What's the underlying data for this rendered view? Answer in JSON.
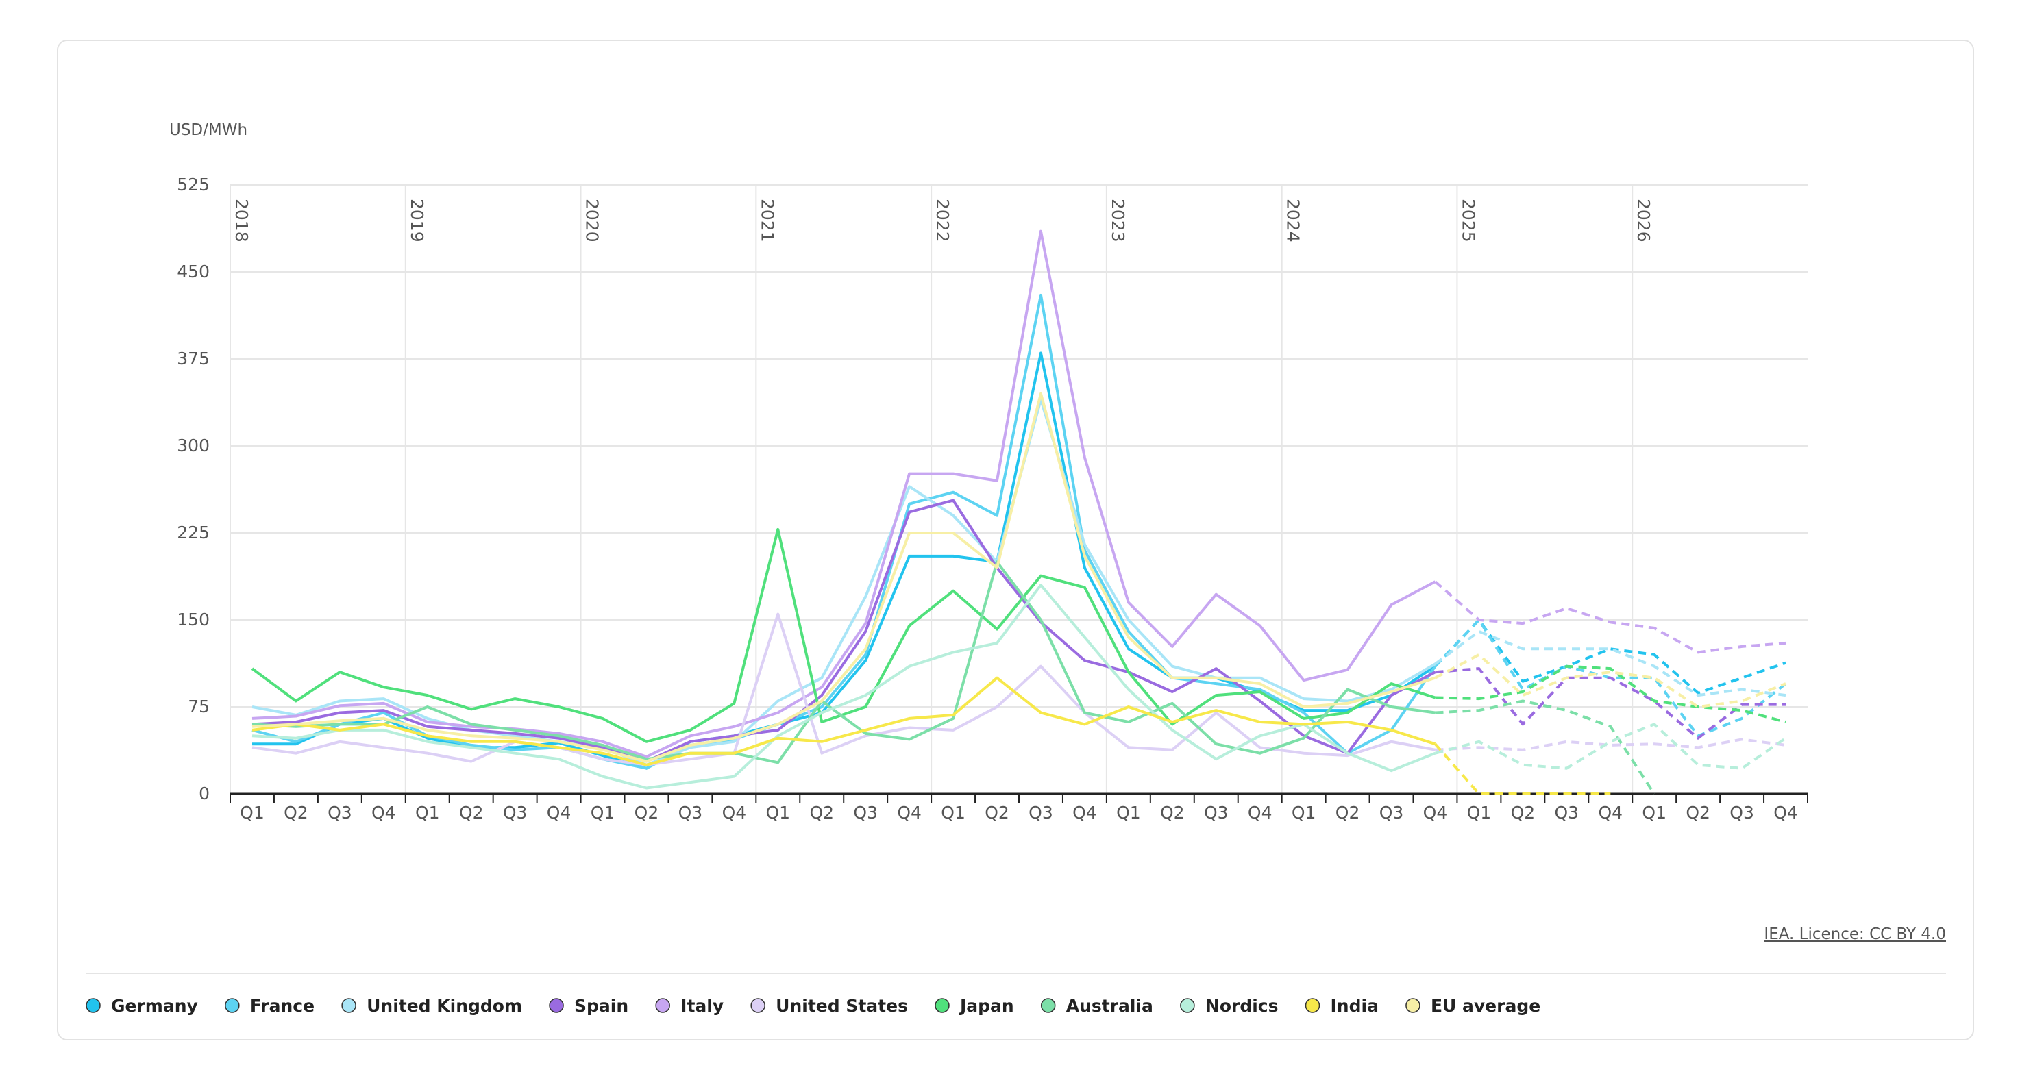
{
  "chart_data": {
    "type": "line",
    "y_unit": "USD/MWh",
    "source": "IEA. Licence: CC BY 4.0",
    "categories": [
      "Q1",
      "Q2",
      "Q3",
      "Q4",
      "Q1",
      "Q2",
      "Q3",
      "Q4",
      "Q1",
      "Q2",
      "Q3",
      "Q4",
      "Q1",
      "Q2",
      "Q3",
      "Q4",
      "Q1",
      "Q2",
      "Q3",
      "Q4",
      "Q1",
      "Q2",
      "Q3",
      "Q4",
      "Q1",
      "Q2",
      "Q3",
      "Q4",
      "Q1",
      "Q2",
      "Q3",
      "Q4",
      "Q1",
      "Q2",
      "Q3",
      "Q4"
    ],
    "years": [
      "2018",
      "2019",
      "2020",
      "2021",
      "2022",
      "2023",
      "2024",
      "2025",
      "2026"
    ],
    "dash_from": 28,
    "ylim": [
      0,
      525
    ],
    "yticks": [
      0,
      75,
      150,
      225,
      300,
      375,
      450,
      525
    ],
    "grid": true,
    "series": [
      {
        "name": "Germany",
        "color": "#22c3ee",
        "values": [
          43,
          43,
          60,
          65,
          48,
          40,
          40,
          44,
          33,
          22,
          45,
          50,
          60,
          70,
          115,
          205,
          205,
          200,
          380,
          195,
          125,
          100,
          100,
          88,
          72,
          72,
          85,
          110,
          150,
          97,
          110,
          125,
          120,
          87,
          100,
          113
        ]
      },
      {
        "name": "France",
        "color": "#5dd3f2",
        "values": [
          55,
          45,
          60,
          70,
          50,
          42,
          38,
          40,
          30,
          22,
          42,
          47,
          60,
          75,
          120,
          250,
          260,
          240,
          430,
          210,
          140,
          100,
          95,
          90,
          70,
          35,
          55,
          110,
          150,
          90,
          110,
          100,
          100,
          50,
          65,
          95
        ]
      },
      {
        "name": "United Kingdom",
        "color": "#a9e5f7",
        "values": [
          75,
          68,
          80,
          82,
          65,
          55,
          50,
          45,
          40,
          25,
          40,
          45,
          80,
          100,
          170,
          265,
          240,
          200,
          340,
          215,
          150,
          110,
          100,
          100,
          82,
          80,
          90,
          112,
          140,
          125,
          125,
          125,
          110,
          85,
          90,
          85
        ]
      },
      {
        "name": "Spain",
        "color": "#9a6be0",
        "values": [
          60,
          62,
          70,
          72,
          58,
          55,
          52,
          48,
          40,
          28,
          45,
          50,
          55,
          85,
          140,
          243,
          253,
          195,
          148,
          115,
          105,
          88,
          108,
          80,
          50,
          35,
          85,
          105,
          108,
          60,
          100,
          100,
          80,
          48,
          77,
          77
        ]
      },
      {
        "name": "Italy",
        "color": "#c7a6f1",
        "values": [
          65,
          67,
          76,
          78,
          62,
          58,
          56,
          52,
          45,
          32,
          50,
          58,
          70,
          92,
          147,
          276,
          276,
          270,
          485,
          290,
          165,
          127,
          172,
          145,
          98,
          107,
          163,
          183,
          150,
          147,
          160,
          148,
          143,
          122,
          127,
          130
        ]
      },
      {
        "name": "United States",
        "color": "#dcd0f5",
        "values": [
          40,
          35,
          45,
          40,
          35,
          28,
          45,
          40,
          30,
          25,
          30,
          35,
          155,
          35,
          50,
          57,
          55,
          75,
          110,
          70,
          40,
          38,
          70,
          40,
          35,
          33,
          45,
          38,
          40,
          38,
          45,
          42,
          43,
          40,
          47,
          42
        ]
      },
      {
        "name": "Japan",
        "color": "#50e07c",
        "values": [
          108,
          80,
          105,
          92,
          85,
          73,
          82,
          75,
          65,
          45,
          55,
          78,
          228,
          62,
          75,
          145,
          175,
          142,
          188,
          178,
          105,
          60,
          85,
          88,
          65,
          70,
          95,
          83,
          82,
          88,
          110,
          108,
          80,
          75,
          72,
          62
        ]
      },
      {
        "name": "Australia",
        "color": "#7cdfa8",
        "values": [
          60,
          58,
          60,
          60,
          75,
          60,
          55,
          50,
          42,
          30,
          35,
          35,
          27,
          80,
          52,
          47,
          65,
          200,
          150,
          70,
          62,
          78,
          43,
          35,
          48,
          90,
          75,
          70,
          72,
          80,
          72,
          58,
          0,
          null,
          null,
          null
        ]
      },
      {
        "name": "Nordics",
        "color": "#b7eedb",
        "values": [
          50,
          48,
          55,
          55,
          45,
          40,
          35,
          30,
          15,
          5,
          10,
          15,
          50,
          70,
          85,
          110,
          122,
          130,
          180,
          135,
          90,
          55,
          30,
          50,
          60,
          35,
          20,
          35,
          45,
          25,
          22,
          45,
          60,
          25,
          22,
          48
        ]
      },
      {
        "name": "India",
        "color": "#f7e84a",
        "values": [
          55,
          60,
          55,
          60,
          50,
          45,
          45,
          40,
          35,
          25,
          35,
          35,
          48,
          45,
          55,
          65,
          68,
          100,
          70,
          60,
          75,
          62,
          72,
          62,
          60,
          62,
          55,
          43,
          0,
          0,
          0,
          0,
          null,
          null,
          null,
          null
        ]
      },
      {
        "name": "EU average",
        "color": "#f7efa6",
        "values": [
          58,
          60,
          63,
          65,
          55,
          50,
          48,
          45,
          38,
          28,
          42,
          48,
          60,
          80,
          125,
          225,
          225,
          195,
          345,
          205,
          135,
          100,
          100,
          95,
          75,
          78,
          88,
          100,
          120,
          85,
          100,
          105,
          100,
          75,
          80,
          95
        ]
      }
    ]
  }
}
